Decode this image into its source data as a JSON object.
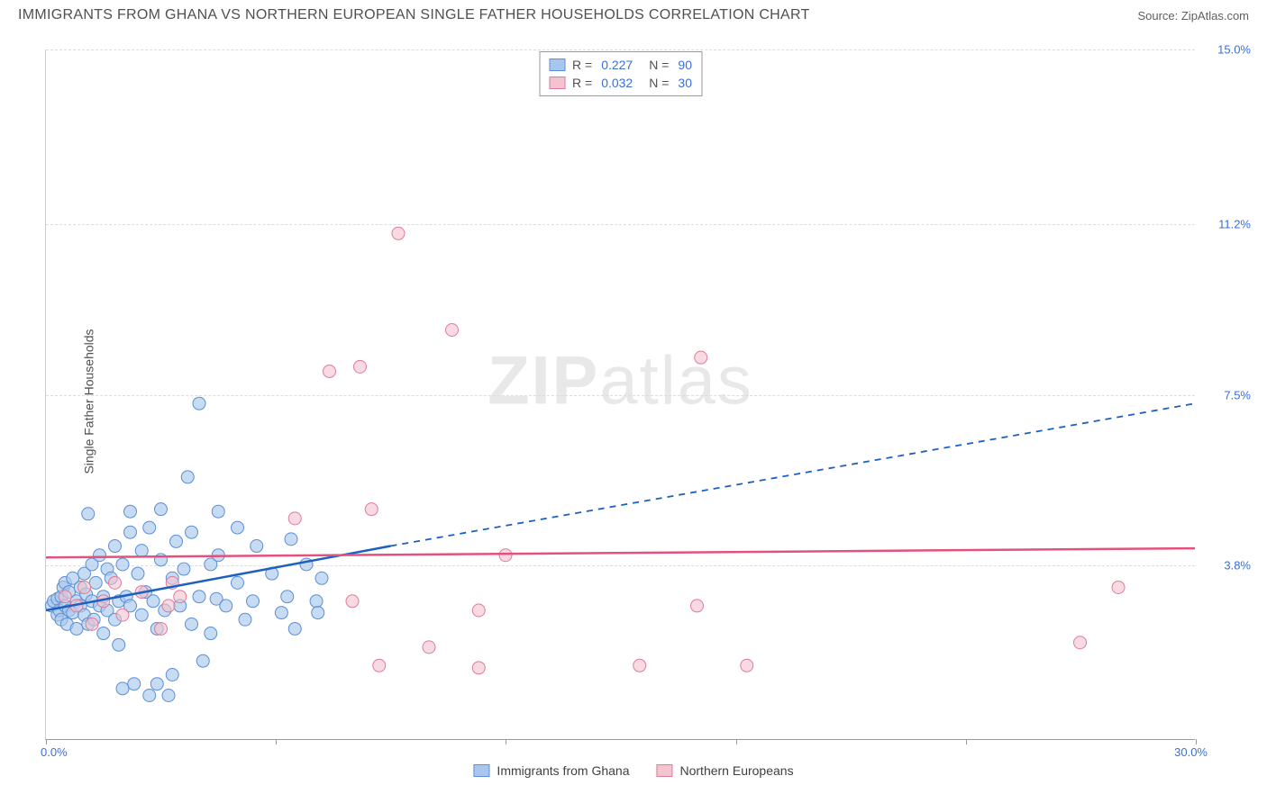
{
  "title": "IMMIGRANTS FROM GHANA VS NORTHERN EUROPEAN SINGLE FATHER HOUSEHOLDS CORRELATION CHART",
  "source": "Source: ZipAtlas.com",
  "ylabel": "Single Father Households",
  "watermark_zip": "ZIP",
  "watermark_atlas": "atlas",
  "xlim_min_label": "0.0%",
  "xlim_max_label": "30.0%",
  "chart": {
    "type": "scatter",
    "xlim": [
      0,
      30
    ],
    "ylim": [
      0,
      15
    ],
    "yticks": [
      {
        "v": 3.8,
        "label": "3.8%"
      },
      {
        "v": 7.5,
        "label": "7.5%"
      },
      {
        "v": 11.2,
        "label": "11.2%"
      },
      {
        "v": 15.0,
        "label": "15.0%"
      }
    ],
    "xticks": [
      0,
      6,
      12,
      18,
      24,
      30
    ],
    "series": [
      {
        "id": "ghana",
        "name": "Immigrants from Ghana",
        "color_fill": "#a9c7ec",
        "color_stroke": "#5a8fd6",
        "marker_opacity": 0.65,
        "r_value": "0.227",
        "n_value": "90",
        "trend": {
          "x1": 0,
          "y1": 2.8,
          "x2": 9,
          "y2": 4.2,
          "dash_x2": 30,
          "dash_y2": 7.3
        },
        "trend_color": "#1e5fc2",
        "points": [
          [
            0.15,
            2.9
          ],
          [
            0.2,
            3.0
          ],
          [
            0.3,
            2.7
          ],
          [
            0.3,
            3.05
          ],
          [
            0.35,
            2.8
          ],
          [
            0.4,
            2.6
          ],
          [
            0.4,
            3.1
          ],
          [
            0.45,
            3.3
          ],
          [
            0.5,
            2.9
          ],
          [
            0.5,
            3.4
          ],
          [
            0.55,
            2.5
          ],
          [
            0.6,
            3.2
          ],
          [
            0.6,
            2.8
          ],
          [
            0.7,
            2.75
          ],
          [
            0.7,
            3.5
          ],
          [
            0.8,
            3.0
          ],
          [
            0.8,
            2.4
          ],
          [
            0.9,
            2.9
          ],
          [
            0.9,
            3.3
          ],
          [
            1.0,
            2.7
          ],
          [
            1.0,
            3.6
          ],
          [
            1.05,
            3.15
          ],
          [
            1.1,
            2.5
          ],
          [
            1.1,
            4.9
          ],
          [
            1.2,
            3.0
          ],
          [
            1.2,
            3.8
          ],
          [
            1.25,
            2.6
          ],
          [
            1.3,
            3.4
          ],
          [
            1.4,
            2.9
          ],
          [
            1.4,
            4.0
          ],
          [
            1.5,
            2.3
          ],
          [
            1.5,
            3.1
          ],
          [
            1.6,
            3.7
          ],
          [
            1.6,
            2.8
          ],
          [
            1.7,
            3.5
          ],
          [
            1.8,
            2.6
          ],
          [
            1.8,
            4.2
          ],
          [
            1.9,
            3.0
          ],
          [
            1.9,
            2.05
          ],
          [
            2.0,
            1.1
          ],
          [
            2.0,
            3.8
          ],
          [
            2.1,
            3.1
          ],
          [
            2.2,
            4.5
          ],
          [
            2.2,
            2.9
          ],
          [
            2.2,
            4.95
          ],
          [
            2.3,
            1.2
          ],
          [
            2.4,
            3.6
          ],
          [
            2.5,
            2.7
          ],
          [
            2.5,
            4.1
          ],
          [
            2.6,
            3.2
          ],
          [
            2.7,
            0.95
          ],
          [
            2.7,
            4.6
          ],
          [
            2.8,
            3.0
          ],
          [
            2.9,
            2.4
          ],
          [
            2.9,
            1.2
          ],
          [
            3.0,
            3.9
          ],
          [
            3.0,
            5.0
          ],
          [
            3.1,
            2.8
          ],
          [
            3.2,
            0.95
          ],
          [
            3.3,
            3.5
          ],
          [
            3.3,
            1.4
          ],
          [
            3.4,
            4.3
          ],
          [
            3.5,
            2.9
          ],
          [
            3.6,
            3.7
          ],
          [
            3.7,
            5.7
          ],
          [
            3.8,
            2.5
          ],
          [
            3.8,
            4.5
          ],
          [
            4.0,
            3.1
          ],
          [
            4.0,
            7.3
          ],
          [
            4.1,
            1.7
          ],
          [
            4.3,
            3.8
          ],
          [
            4.3,
            2.3
          ],
          [
            4.45,
            3.05
          ],
          [
            4.5,
            4.0
          ],
          [
            4.5,
            4.95
          ],
          [
            4.7,
            2.9
          ],
          [
            5.0,
            3.4
          ],
          [
            5.0,
            4.6
          ],
          [
            5.2,
            2.6
          ],
          [
            5.4,
            3.0
          ],
          [
            5.5,
            4.2
          ],
          [
            5.9,
            3.6
          ],
          [
            6.15,
            2.75
          ],
          [
            6.3,
            3.1
          ],
          [
            6.4,
            4.35
          ],
          [
            6.5,
            2.4
          ],
          [
            6.8,
            3.8
          ],
          [
            7.06,
            3.0
          ],
          [
            7.1,
            2.75
          ],
          [
            7.2,
            3.5
          ]
        ]
      },
      {
        "id": "northern",
        "name": "Northern Europeans",
        "color_fill": "#f3c3cf",
        "color_stroke": "#e07a9a",
        "marker_opacity": 0.6,
        "r_value": "0.032",
        "n_value": "30",
        "trend": {
          "x1": 0,
          "y1": 3.95,
          "x2": 30,
          "y2": 4.15
        },
        "trend_color": "#e2527d",
        "points": [
          [
            0.5,
            3.1
          ],
          [
            0.8,
            2.9
          ],
          [
            1.0,
            3.3
          ],
          [
            1.2,
            2.5
          ],
          [
            1.5,
            3.0
          ],
          [
            1.8,
            3.4
          ],
          [
            2.0,
            2.7
          ],
          [
            2.5,
            3.2
          ],
          [
            3.0,
            2.4
          ],
          [
            3.2,
            2.9
          ],
          [
            3.3,
            3.4
          ],
          [
            3.5,
            3.1
          ],
          [
            6.5,
            4.8
          ],
          [
            7.4,
            8.0
          ],
          [
            8.0,
            3.0
          ],
          [
            8.2,
            8.1
          ],
          [
            8.5,
            5.0
          ],
          [
            8.7,
            1.6
          ],
          [
            9.2,
            11.0
          ],
          [
            10.0,
            2.0
          ],
          [
            10.6,
            8.9
          ],
          [
            11.3,
            1.55
          ],
          [
            11.3,
            2.8
          ],
          [
            12.0,
            4.0
          ],
          [
            15.5,
            1.6
          ],
          [
            17.0,
            2.9
          ],
          [
            17.1,
            8.3
          ],
          [
            18.3,
            1.6
          ],
          [
            27.0,
            2.1
          ],
          [
            28.0,
            3.3
          ]
        ]
      }
    ],
    "marker_radius": 7,
    "background": "#ffffff",
    "grid_color": "#dddddd"
  },
  "legend_r_label": "R =",
  "legend_n_label": "N ="
}
